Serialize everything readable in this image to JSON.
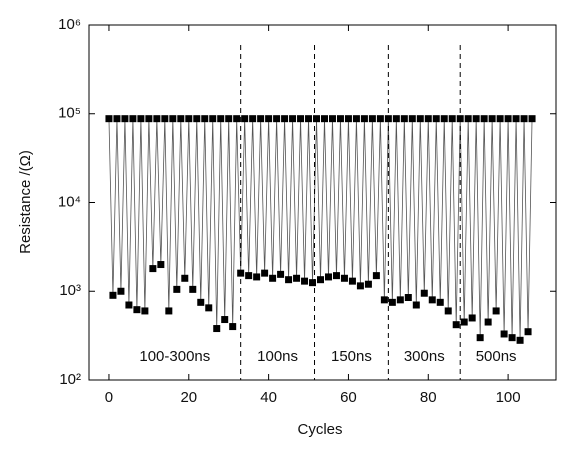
{
  "chart_data": {
    "type": "line",
    "xlabel": "Cycles",
    "ylabel": "Resistance /(Ω)",
    "x": [
      0,
      1,
      2,
      3,
      4,
      5,
      6,
      7,
      8,
      9,
      10,
      11,
      12,
      13,
      14,
      15,
      16,
      17,
      18,
      19,
      20,
      21,
      22,
      23,
      24,
      25,
      26,
      27,
      28,
      29,
      30,
      31,
      32,
      33,
      34,
      35,
      36,
      37,
      38,
      39,
      40,
      41,
      42,
      43,
      44,
      45,
      46,
      47,
      48,
      49,
      50,
      51,
      52,
      53,
      54,
      55,
      56,
      57,
      58,
      59,
      60,
      61,
      62,
      63,
      64,
      65,
      66,
      67,
      68,
      69,
      70,
      71,
      72,
      73,
      74,
      75,
      76,
      77,
      78,
      79,
      80,
      81,
      82,
      83,
      84,
      85,
      86,
      87,
      88,
      89,
      90,
      91,
      92,
      93,
      94,
      95,
      96,
      97,
      98,
      99,
      100,
      101,
      102,
      103,
      104,
      105,
      106
    ],
    "values": [
      88000,
      900,
      88000,
      1000,
      88000,
      700,
      88000,
      620,
      88000,
      600,
      88000,
      1800,
      88000,
      2000,
      88000,
      600,
      88000,
      1050,
      88000,
      1400,
      88000,
      1050,
      88000,
      750,
      88000,
      650,
      88000,
      380,
      88000,
      480,
      88000,
      400,
      88000,
      1600,
      88000,
      1500,
      88000,
      1450,
      88000,
      1600,
      88000,
      1400,
      88000,
      1550,
      88000,
      1350,
      88000,
      1400,
      88000,
      1300,
      88000,
      1250,
      88000,
      1350,
      88000,
      1450,
      88000,
      1500,
      88000,
      1400,
      88000,
      1300,
      88000,
      1150,
      88000,
      1200,
      88000,
      1500,
      88000,
      800,
      88000,
      750,
      88000,
      800,
      88000,
      850,
      88000,
      700,
      88000,
      950,
      88000,
      800,
      88000,
      750,
      88000,
      600,
      88000,
      420,
      88000,
      450,
      88000,
      500,
      88000,
      300,
      88000,
      450,
      88000,
      600,
      88000,
      330,
      88000,
      300,
      88000,
      280,
      88000,
      350,
      88000
    ],
    "color": "#000000",
    "xlim": [
      -5,
      112
    ],
    "xticks": [
      0,
      20,
      40,
      60,
      80,
      100
    ],
    "ylim": [
      100,
      1000000
    ],
    "log_y": true,
    "yticks": [
      {
        "value": 100,
        "label": "10²"
      },
      {
        "value": 1000,
        "label": "10³"
      },
      {
        "value": 10000,
        "label": "10⁴"
      },
      {
        "value": 100000,
        "label": "10⁵"
      },
      {
        "value": 1000000,
        "label": "10⁶"
      }
    ],
    "dividers": [
      33,
      51.5,
      70,
      88
    ],
    "regions": [
      "100-300ns",
      "100ns",
      "150ns",
      "300ns",
      "500ns"
    ]
  }
}
